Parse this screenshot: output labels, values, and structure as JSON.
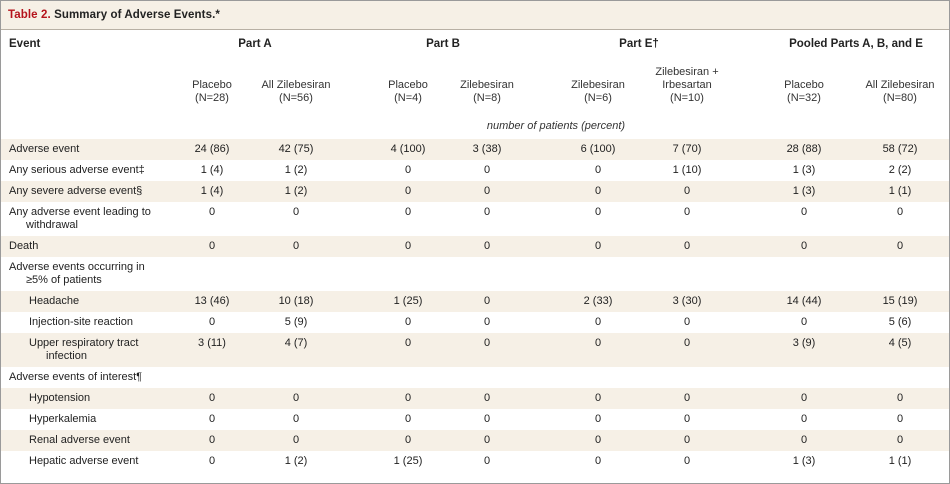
{
  "table": {
    "number": "Table 2.",
    "title": " Summary of Adverse Events.*",
    "event_header": "Event",
    "groups": [
      "Part A",
      "Part B",
      "Part E†",
      "Pooled Parts A, B, and E"
    ],
    "columns": [
      {
        "line1": "Placebo",
        "line2": "(N=28)"
      },
      {
        "line1": "All Zilebesiran",
        "line2": "(N=56)"
      },
      {
        "line1": "Placebo",
        "line2": "(N=4)"
      },
      {
        "line1": "Zilebesiran",
        "line2": "(N=8)"
      },
      {
        "line1": "Zilebesiran",
        "line2": "(N=6)"
      },
      {
        "line0": "Zilebesiran +",
        "line1": "Irbesartan",
        "line2": "(N=10)"
      },
      {
        "line1": "Placebo",
        "line2": "(N=32)"
      },
      {
        "line1": "All Zilebesiran",
        "line2": "(N=80)"
      }
    ],
    "units": "number of patients (percent)",
    "rows": [
      {
        "label": "Adverse event",
        "values": [
          "24 (86)",
          "42 (75)",
          "4 (100)",
          "3 (38)",
          "6 (100)",
          "7 (70)",
          "28 (88)",
          "58 (72)"
        ]
      },
      {
        "label": "Any serious adverse event‡",
        "values": [
          "1 (4)",
          "1 (2)",
          "0",
          "0",
          "0",
          "1 (10)",
          "1 (3)",
          "2 (2)"
        ]
      },
      {
        "label": "Any severe adverse event§",
        "values": [
          "1 (4)",
          "1 (2)",
          "0",
          "0",
          "0",
          "0",
          "1 (3)",
          "1 (1)"
        ]
      },
      {
        "label": "Any adverse event leading to",
        "label2": "withdrawal",
        "values": [
          "0",
          "0",
          "0",
          "0",
          "0",
          "0",
          "0",
          "0"
        ]
      },
      {
        "label": "Death",
        "values": [
          "0",
          "0",
          "0",
          "0",
          "0",
          "0",
          "0",
          "0"
        ]
      },
      {
        "label": "Adverse events occurring in",
        "label2": "≥5% of patients",
        "values": []
      },
      {
        "label": "Headache",
        "indent": true,
        "values": [
          "13 (46)",
          "10 (18)",
          "1 (25)",
          "0",
          "2 (33)",
          "3 (30)",
          "14 (44)",
          "15 (19)"
        ]
      },
      {
        "label": "Injection-site reaction",
        "indent": true,
        "values": [
          "0",
          "5 (9)",
          "0",
          "0",
          "0",
          "0",
          "0",
          "5 (6)"
        ]
      },
      {
        "label": "Upper respiratory tract",
        "label2": "infection",
        "indent": true,
        "values": [
          "3 (11)",
          "4 (7)",
          "0",
          "0",
          "0",
          "0",
          "3 (9)",
          "4 (5)"
        ]
      },
      {
        "label": "Adverse events of interest¶",
        "values": []
      },
      {
        "label": "Hypotension",
        "indent": true,
        "values": [
          "0",
          "0",
          "0",
          "0",
          "0",
          "0",
          "0",
          "0"
        ]
      },
      {
        "label": "Hyperkalemia",
        "indent": true,
        "values": [
          "0",
          "0",
          "0",
          "0",
          "0",
          "0",
          "0",
          "0"
        ]
      },
      {
        "label": "Renal adverse event",
        "indent": true,
        "values": [
          "0",
          "0",
          "0",
          "0",
          "0",
          "0",
          "0",
          "0"
        ]
      },
      {
        "label": "Hepatic adverse event",
        "indent": true,
        "values": [
          "0",
          "1 (2)",
          "1 (25)",
          "0",
          "0",
          "0",
          "1 (3)",
          "1 (1)"
        ]
      }
    ]
  },
  "colors": {
    "title_accent": "#b5121b",
    "shade": "#f6f0e6",
    "border": "#9a9a9a"
  }
}
